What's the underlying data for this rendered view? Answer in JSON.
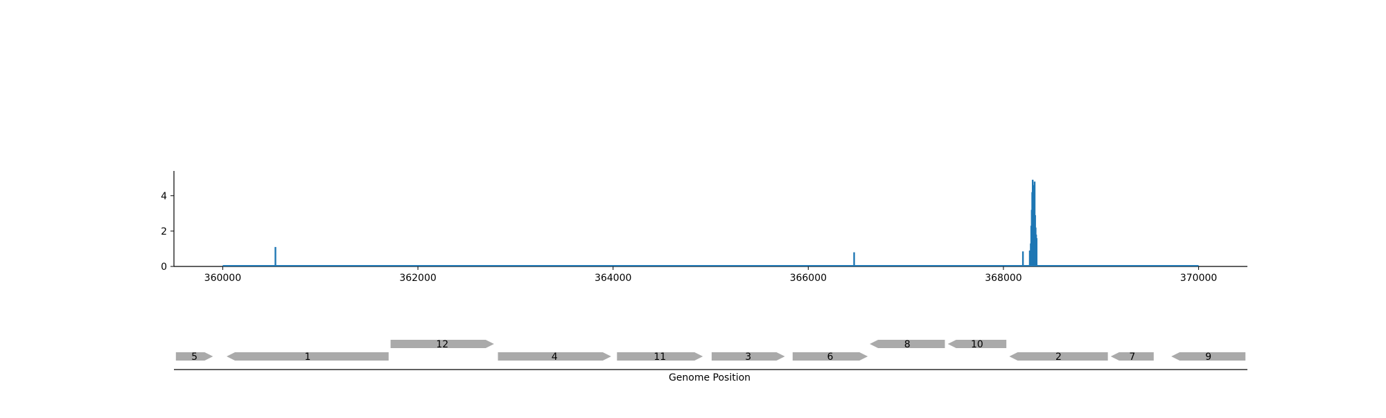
{
  "chart_data": [
    {
      "type": "bar",
      "title": "",
      "xlabel": "",
      "ylabel": "",
      "xlim": [
        359500,
        370500
      ],
      "ylim": [
        0,
        5.4
      ],
      "xticks": [
        360000,
        362000,
        364000,
        366000,
        368000,
        370000
      ],
      "xtick_labels": [
        "360000",
        "362000",
        "364000",
        "366000",
        "368000",
        "370000"
      ],
      "yticks": [
        0,
        2,
        4
      ],
      "ytick_labels": [
        "0",
        "2",
        "4"
      ],
      "baseline_range": [
        360000,
        370000
      ],
      "grid": false,
      "color": "#1f77b4",
      "points": [
        {
          "x": 360540,
          "y": 1.1
        },
        {
          "x": 366470,
          "y": 0.8
        },
        {
          "x": 368200,
          "y": 0.85
        },
        {
          "x": 368270,
          "y": 0.9
        },
        {
          "x": 368280,
          "y": 1.3
        },
        {
          "x": 368285,
          "y": 2.3
        },
        {
          "x": 368290,
          "y": 3.2
        },
        {
          "x": 368295,
          "y": 4.2
        },
        {
          "x": 368300,
          "y": 4.9
        },
        {
          "x": 368305,
          "y": 4.3
        },
        {
          "x": 368310,
          "y": 4.6
        },
        {
          "x": 368315,
          "y": 3.5
        },
        {
          "x": 368320,
          "y": 4.8
        },
        {
          "x": 368325,
          "y": 2.9
        },
        {
          "x": 368330,
          "y": 2.2
        },
        {
          "x": 368335,
          "y": 1.8
        },
        {
          "x": 368340,
          "y": 1.6
        }
      ]
    },
    {
      "type": "gene_track",
      "xlabel": "Genome Position",
      "xlim": [
        359500,
        370500
      ],
      "color": "#aaaaaa",
      "genes": [
        {
          "label": "5",
          "start": 359520,
          "end": 359900,
          "strand": "+",
          "row": 0
        },
        {
          "label": "1",
          "start": 360040,
          "end": 361700,
          "strand": "-",
          "row": 0
        },
        {
          "label": "12",
          "start": 361720,
          "end": 362780,
          "strand": "+",
          "row": 1
        },
        {
          "label": "4",
          "start": 362820,
          "end": 363980,
          "strand": "+",
          "row": 0
        },
        {
          "label": "11",
          "start": 364040,
          "end": 364920,
          "strand": "+",
          "row": 0
        },
        {
          "label": "3",
          "start": 365010,
          "end": 365760,
          "strand": "+",
          "row": 0
        },
        {
          "label": "6",
          "start": 365840,
          "end": 366610,
          "strand": "+",
          "row": 0
        },
        {
          "label": "8",
          "start": 366630,
          "end": 367400,
          "strand": "-",
          "row": 1
        },
        {
          "label": "10",
          "start": 367430,
          "end": 368030,
          "strand": "-",
          "row": 1
        },
        {
          "label": "2",
          "start": 368060,
          "end": 369070,
          "strand": "-",
          "row": 0
        },
        {
          "label": "7",
          "start": 369100,
          "end": 369540,
          "strand": "-",
          "row": 0
        },
        {
          "label": "9",
          "start": 369720,
          "end": 370480,
          "strand": "-",
          "row": 0
        }
      ]
    }
  ]
}
